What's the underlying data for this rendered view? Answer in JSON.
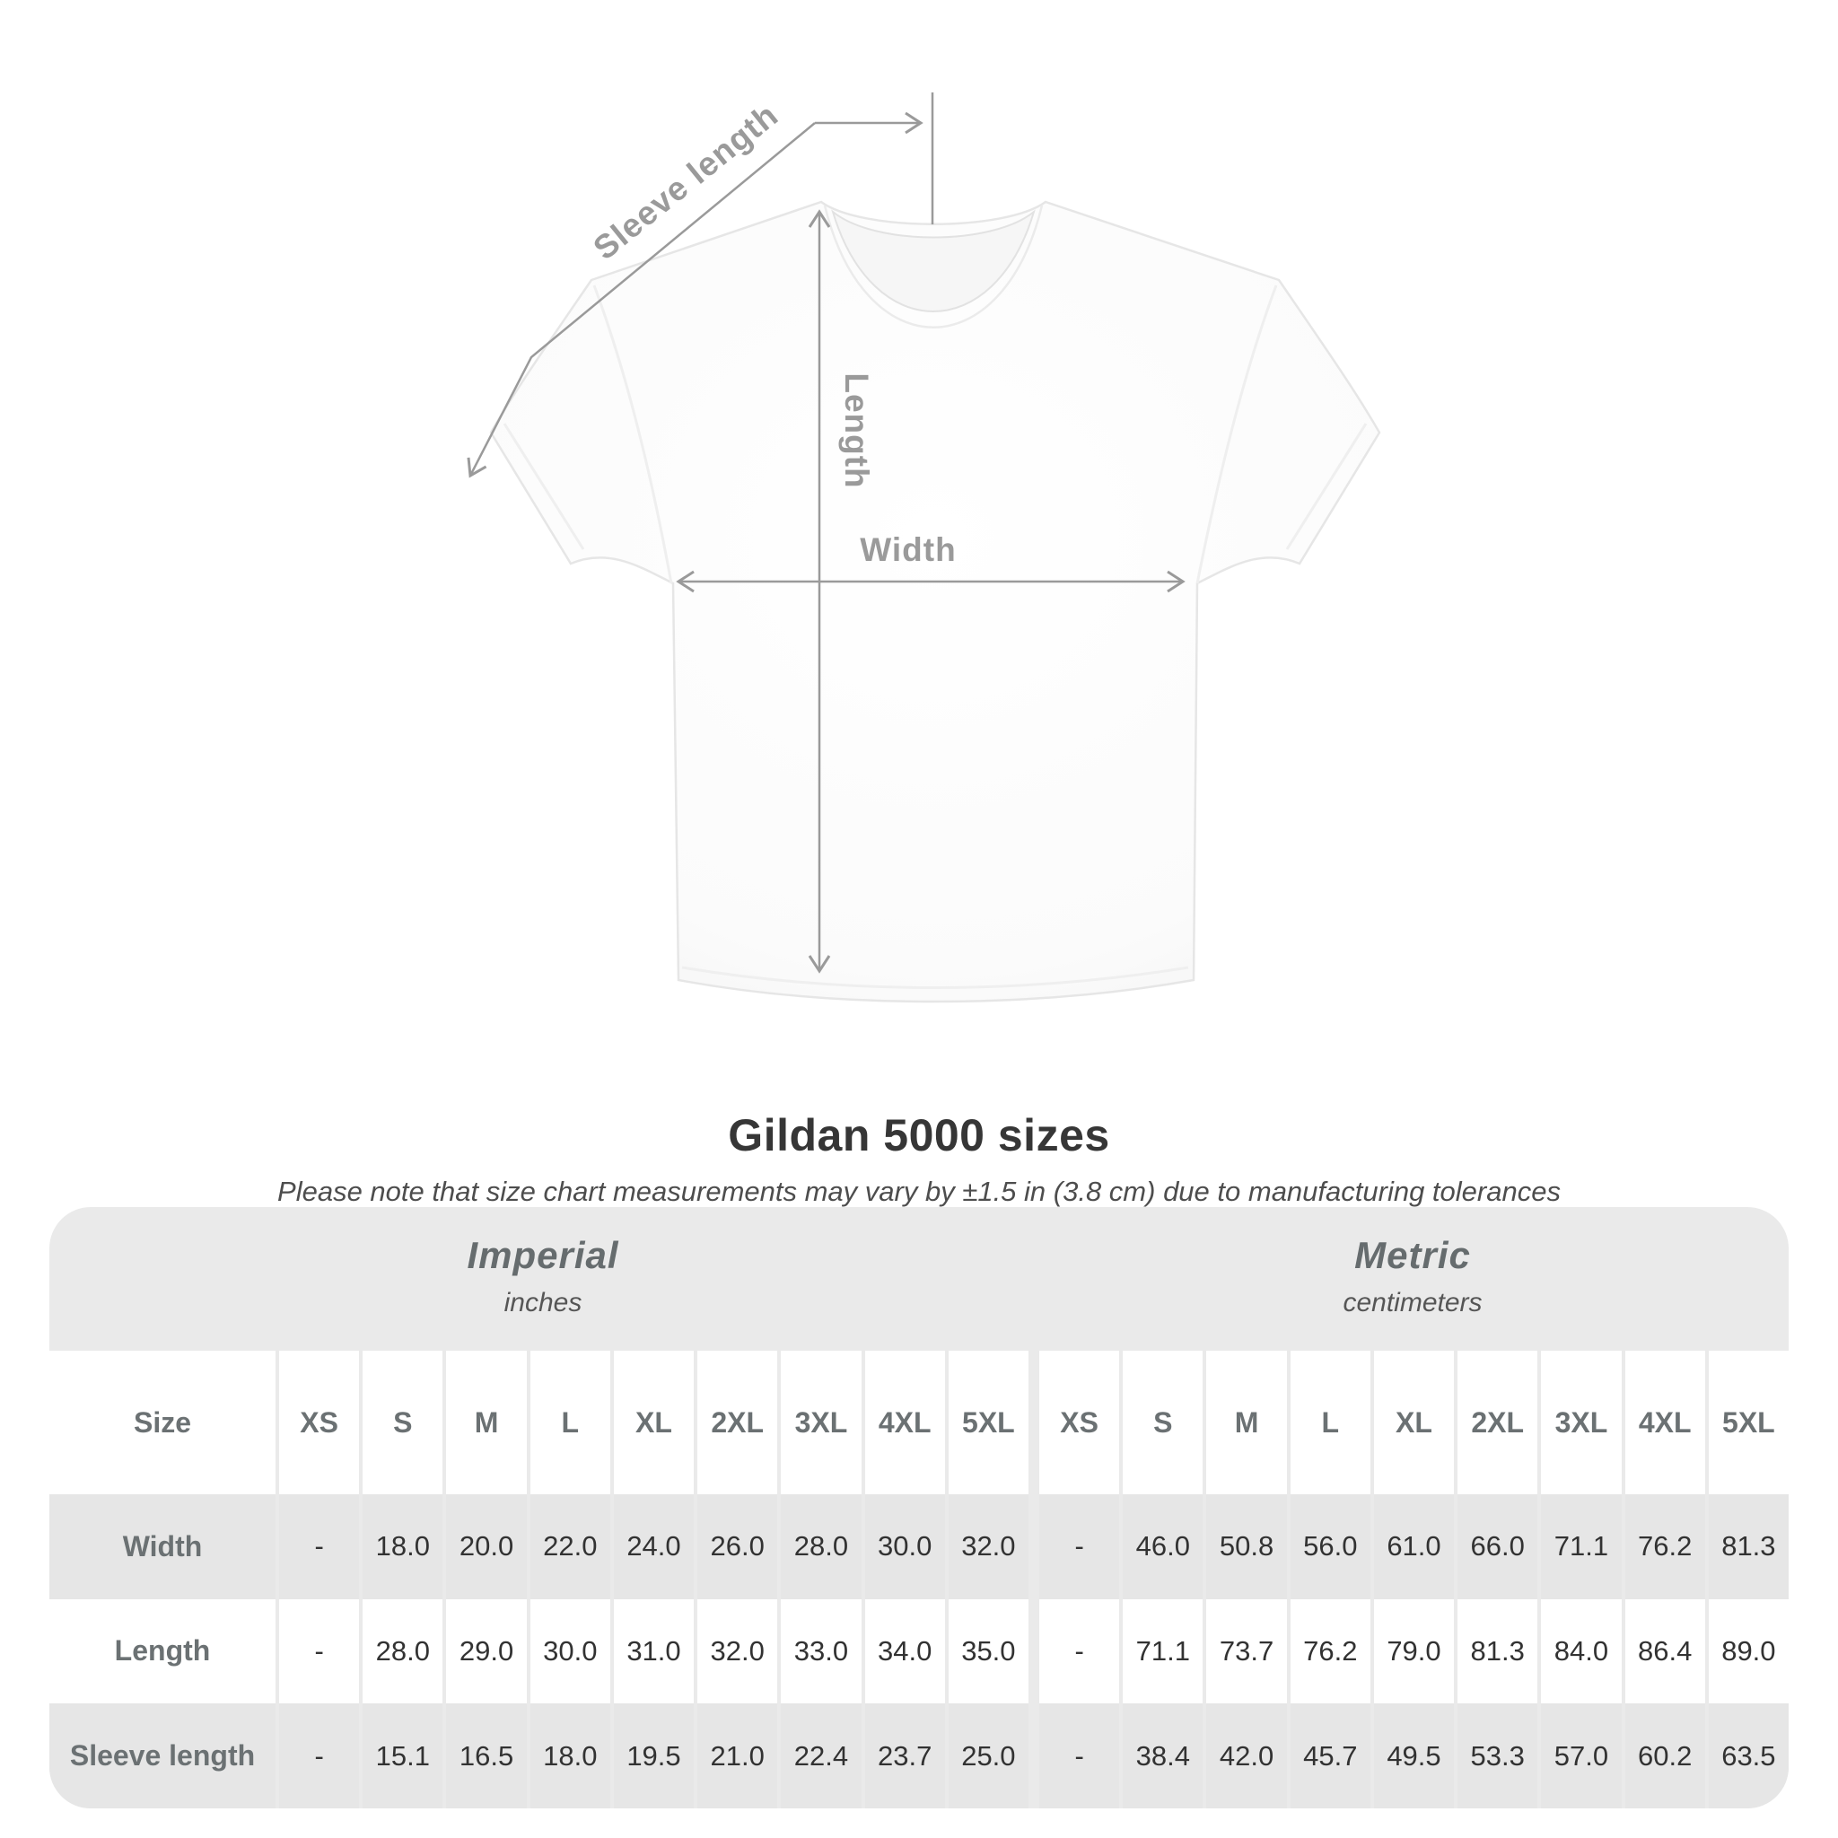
{
  "diagram": {
    "sleeve_length_label": "Sleeve length",
    "length_label": "Length",
    "width_label": "Width"
  },
  "title": "Gildan 5000 sizes",
  "subtitle": "Please note that size chart measurements may vary by ±1.5 in (3.8 cm) due to manufacturing tolerances",
  "table": {
    "size_header": "Size",
    "groups": [
      {
        "name": "Imperial",
        "unit": "inches"
      },
      {
        "name": "Metric",
        "unit": "centimeters"
      }
    ],
    "sizes": [
      "XS",
      "S",
      "M",
      "L",
      "XL",
      "2XL",
      "3XL",
      "4XL",
      "5XL"
    ],
    "rows": [
      {
        "label": "Width",
        "imperial": [
          "-",
          "18.0",
          "20.0",
          "22.0",
          "24.0",
          "26.0",
          "28.0",
          "30.0",
          "32.0"
        ],
        "metric": [
          "-",
          "46.0",
          "50.8",
          "56.0",
          "61.0",
          "66.0",
          "71.1",
          "76.2",
          "81.3"
        ]
      },
      {
        "label": "Length",
        "imperial": [
          "-",
          "28.0",
          "29.0",
          "30.0",
          "31.0",
          "32.0",
          "33.0",
          "34.0",
          "35.0"
        ],
        "metric": [
          "-",
          "71.1",
          "73.7",
          "76.2",
          "79.0",
          "81.3",
          "84.0",
          "86.4",
          "89.0"
        ]
      },
      {
        "label": "Sleeve length",
        "imperial": [
          "-",
          "15.1",
          "16.5",
          "18.0",
          "19.5",
          "21.0",
          "22.4",
          "23.7",
          "25.0"
        ],
        "metric": [
          "-",
          "38.4",
          "42.0",
          "45.7",
          "49.5",
          "53.3",
          "57.0",
          "60.2",
          "63.5"
        ]
      }
    ]
  },
  "colors": {
    "measurement_gray": "#9a9a9a",
    "table_band_gray": "#eaeaea",
    "table_cell_gray": "#e6e6e6",
    "header_text_gray": "#6b7173",
    "title_dark": "#363636"
  }
}
